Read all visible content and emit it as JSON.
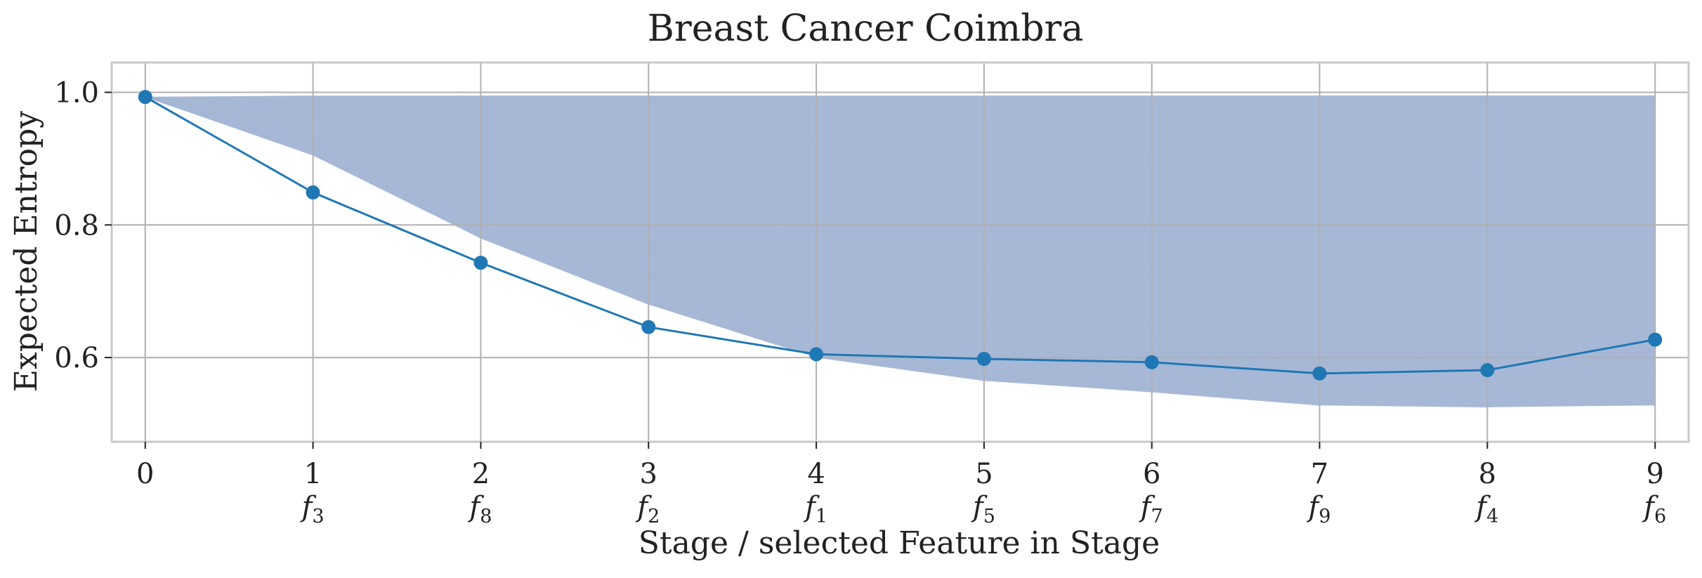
{
  "chart_data": {
    "type": "line",
    "title": "Breast Cancer Coimbra",
    "xlabel": "Stage / selected Feature in Stage",
    "ylabel": "Expected Entropy",
    "x": [
      0,
      1,
      2,
      3,
      4,
      5,
      6,
      7,
      8,
      9
    ],
    "x_tick_labels": [
      "0",
      "1",
      "2",
      "3",
      "4",
      "5",
      "6",
      "7",
      "8",
      "9"
    ],
    "feature_labels": [
      {
        "base": "",
        "sub": ""
      },
      {
        "base": "f",
        "sub": "3"
      },
      {
        "base": "f",
        "sub": "8"
      },
      {
        "base": "f",
        "sub": "2"
      },
      {
        "base": "f",
        "sub": "1"
      },
      {
        "base": "f",
        "sub": "5"
      },
      {
        "base": "f",
        "sub": "7"
      },
      {
        "base": "f",
        "sub": "9"
      },
      {
        "base": "f",
        "sub": "4"
      },
      {
        "base": "f",
        "sub": "6"
      }
    ],
    "xlim": [
      -0.2,
      9.2
    ],
    "ylim": [
      0.473,
      1.045
    ],
    "y_ticks": [
      0.6,
      0.8,
      1.0
    ],
    "y_tick_labels": [
      "0.6",
      "0.8",
      "1.0"
    ],
    "grid": true,
    "series": [
      {
        "values": [
          0.993,
          0.849,
          0.743,
          0.646,
          0.605,
          0.598,
          0.593,
          0.576,
          0.581,
          0.627
        ],
        "color": "#1f77b4"
      }
    ],
    "band": {
      "upper": [
        0.993,
        0.995,
        0.995,
        0.995,
        0.995,
        0.995,
        0.995,
        0.995,
        0.995,
        0.995
      ],
      "lower": [
        0.993,
        0.905,
        0.78,
        0.68,
        0.6,
        0.565,
        0.548,
        0.528,
        0.525,
        0.528
      ],
      "color": "#a7b8d6"
    }
  }
}
